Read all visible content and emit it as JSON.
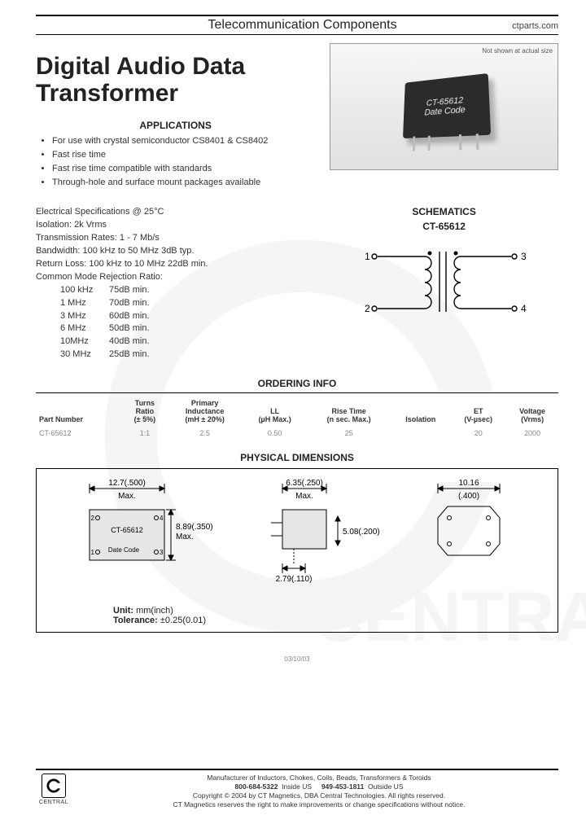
{
  "header": {
    "category": "Telecommunication Components",
    "site": "ctparts.com"
  },
  "title_line1": "Digital Audio Data",
  "title_line2": "Transformer",
  "product_image": {
    "note": "Not shown at actual size",
    "label1": "CT-65612",
    "label2": "Date Code"
  },
  "applications": {
    "heading": "APPLICATIONS",
    "items": [
      "For use with crystal semiconductor CS8401 & CS8402",
      "Fast rise time",
      "Fast rise time compatible with standards",
      "Through-hole and surface mount packages available"
    ]
  },
  "specs": {
    "heading": "Electrical Specifications @ 25°C",
    "lines": [
      "Isolation:  2k Vrms",
      "Transmission Rates:  1 - 7 Mb/s",
      "Bandwidth:  100 kHz to 50 MHz 3dB typ.",
      "Return Loss:  100 kHz to 10 MHz 22dB min.",
      "Common Mode Rejection Ratio:"
    ],
    "cmrr": [
      {
        "k": "100 kHz",
        "v": "75dB min."
      },
      {
        "k": "1 MHz",
        "v": "70dB min."
      },
      {
        "k": "3 MHz",
        "v": "60dB min."
      },
      {
        "k": "6 MHz",
        "v": "50dB min."
      },
      {
        "k": "10MHz",
        "v": "40dB min."
      },
      {
        "k": "30 MHz",
        "v": "25dB min."
      }
    ]
  },
  "schematics": {
    "heading": "SCHEMATICS",
    "part": "CT-65612",
    "pins": [
      "1",
      "2",
      "3",
      "4"
    ]
  },
  "ordering": {
    "heading": "ORDERING INFO",
    "columns": [
      "Part Number",
      "Turns\nRatio\n(± 5%)",
      "Primary\nInductance\n(mH ± 20%)",
      "LL\n(µH Max.)",
      "Rise Time\n(n sec. Max.)",
      "Isolation",
      "ET\n(V-µsec)",
      "Voltage\n(Vrms)"
    ],
    "rows": [
      [
        "CT-65612",
        "1:1",
        "2.5",
        "0.50",
        "25",
        "",
        "20",
        "2000"
      ]
    ]
  },
  "physical": {
    "heading": "PHYSICAL DIMENSIONS",
    "view1": {
      "w": "12.7(.500)",
      "w_suffix": "Max.",
      "h": "8.89(.350)",
      "h_suffix": "Max.",
      "label": "CT-65612",
      "label2": "Date Code",
      "pins": [
        "1",
        "2",
        "3",
        "4"
      ]
    },
    "view2": {
      "w": "6.35(.250)",
      "w_suffix": "Max.",
      "h": "5.08(.200)",
      "pin_w": "2.79(.110)"
    },
    "view3": {
      "w": "10.16",
      "w_sub": "(.400)"
    },
    "notes": {
      "unit_label": "Unit:",
      "unit_val": "mm(inch)",
      "tol_label": "Tolerance:",
      "tol_val": "±0.25(0.01)"
    }
  },
  "date_code": "03/10/03",
  "footer": {
    "logo_text": "CENTRAL",
    "line1": "Manufacturer of Inductors, Chokes, Coils, Beads, Transformers & Toroids",
    "phone1": "800-684-5322",
    "phone1_suffix": "Inside US",
    "phone2": "949-453-1811",
    "phone2_suffix": "Outside US",
    "copyright": "Copyright © 2004 by CT Magnetics, DBA Central Technologies. All rights reserved.",
    "disclaimer": "CT Magnetics reserves the right to make improvements or change specifications without notice."
  },
  "colors": {
    "text": "#222222",
    "muted": "#888888",
    "rule": "#000000",
    "watermark": "#cfcfcf"
  }
}
